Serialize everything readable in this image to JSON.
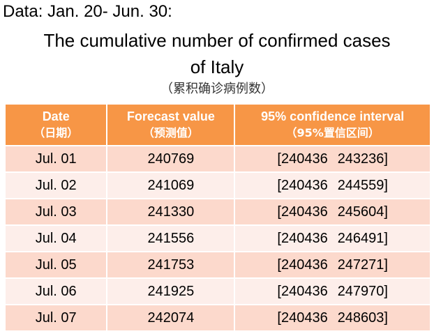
{
  "data_range": "Data: Jan. 20- Jun. 30:",
  "title_line1": "The cumulative number of confirmed cases",
  "title_line2": "of  Italy",
  "subtitle": "（累积确诊病例数）",
  "table": {
    "headers": [
      {
        "en": "Date",
        "zh": "（日期）"
      },
      {
        "en": "Forecast value",
        "zh": "（预测值）"
      },
      {
        "en": "95% confidence interval",
        "zh": "（95%置信区间）"
      }
    ],
    "rows": [
      {
        "date": "Jul. 01",
        "forecast": "240769",
        "ci_lower": "[240436",
        "ci_upper": "243236]"
      },
      {
        "date": "Jul. 02",
        "forecast": "241069",
        "ci_lower": "[240436",
        "ci_upper": "244559]"
      },
      {
        "date": "Jul. 03",
        "forecast": "241330",
        "ci_lower": "[240436",
        "ci_upper": "245604]"
      },
      {
        "date": "Jul. 04",
        "forecast": "241556",
        "ci_lower": "[240436",
        "ci_upper": "246491]"
      },
      {
        "date": "Jul. 05",
        "forecast": "241753",
        "ci_lower": "[240436",
        "ci_upper": "247271]"
      },
      {
        "date": "Jul. 06",
        "forecast": "241925",
        "ci_lower": "[240436",
        "ci_upper": "247970]"
      },
      {
        "date": "Jul. 07",
        "forecast": "242074",
        "ci_lower": "[240436",
        "ci_upper": "248603]"
      }
    ]
  },
  "colors": {
    "header_bg": "#f79646",
    "row_odd_bg": "#fcd9cc",
    "row_even_bg": "#fdeeea"
  }
}
